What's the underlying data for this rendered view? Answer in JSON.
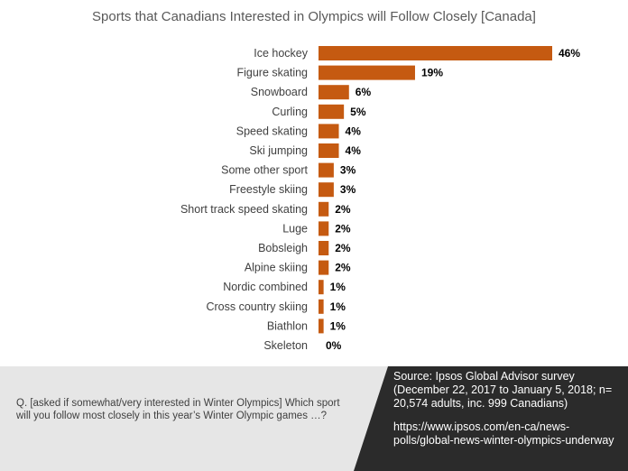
{
  "chart_data": {
    "type": "bar",
    "orientation": "horizontal",
    "title": "Sports that Canadians Interested in Olympics will Follow Closely [Canada]",
    "categories": [
      "Ice hockey",
      "Figure skating",
      "Snowboard",
      "Curling",
      "Speed skating",
      "Ski jumping",
      "Some other sport",
      "Freestyle skiing",
      "Short track speed skating",
      "Luge",
      "Bobsleigh",
      "Alpine skiing",
      "Nordic combined",
      "Cross country skiing",
      "Biathlon",
      "Skeleton"
    ],
    "values": [
      46,
      19,
      6,
      5,
      4,
      4,
      3,
      3,
      2,
      2,
      2,
      2,
      1,
      1,
      1,
      0
    ],
    "value_labels": [
      "46%",
      "19%",
      "6%",
      "5%",
      "4%",
      "4%",
      "3%",
      "3%",
      "2%",
      "2%",
      "2%",
      "2%",
      "1%",
      "1%",
      "1%",
      "0%"
    ],
    "xlim": [
      0,
      46
    ],
    "bar_color": "#c55a11",
    "grid": false,
    "legend": "none"
  },
  "footer": {
    "question": "Q.  [asked if somewhat/very interested in Winter Olympics] Which sport will you follow most closely in this year’s Winter Olympic games …?",
    "source": "Source: Ipsos Global Advisor survey (December 22, 2017 to January 5, 2018; n= 20,574 adults, inc. 999 Canadians)",
    "url": "https://www.ipsos.com/en-ca/news-polls/global-news-winter-olympics-underway"
  }
}
